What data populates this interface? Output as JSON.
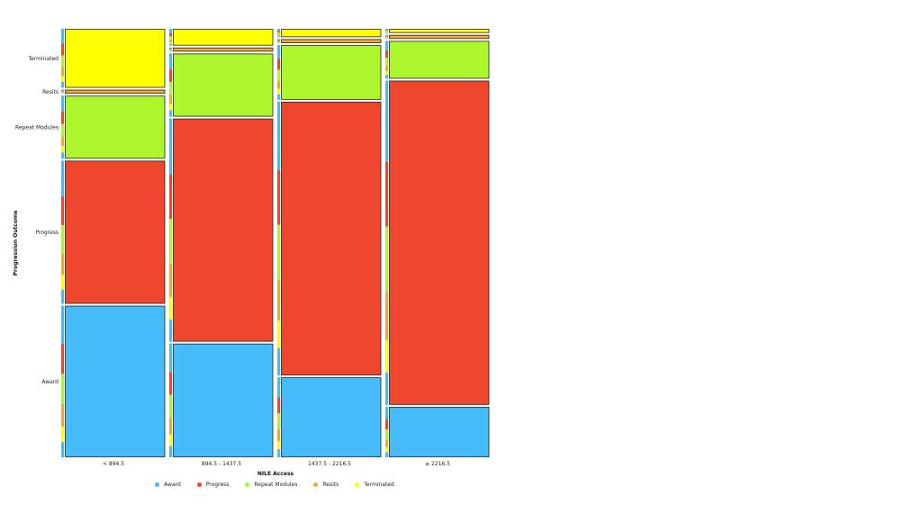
{
  "chart_data": {
    "type": "mosaic",
    "xlabel": "NILE Access",
    "ylabel": "Progression Outcome",
    "x_categories": [
      "< 894.5",
      "894.5 - 1437.5",
      "1437.5 - 2216.5",
      "≥ 2216.5"
    ],
    "x_widths": [
      0.25,
      0.25,
      0.25,
      0.25
    ],
    "y_categories": [
      "Award",
      "Progress",
      "Repeat Modules",
      "Resits",
      "Terminated"
    ],
    "y_tick_labels": [
      "Award",
      "Progress",
      "Repeat Modules",
      "Resits",
      "Terminated"
    ],
    "series": [
      {
        "name": "Award",
        "color": "#45BBF9",
        "values": [
          0.36,
          0.27,
          0.19,
          0.12
        ]
      },
      {
        "name": "Progress",
        "color": "#EF462E",
        "values": [
          0.34,
          0.53,
          0.65,
          0.77
        ]
      },
      {
        "name": "Repeat Modules",
        "color": "#ADF52C",
        "values": [
          0.15,
          0.15,
          0.13,
          0.09
        ]
      },
      {
        "name": "Resits",
        "color": "#F0A830",
        "values": [
          0.01,
          0.01,
          0.01,
          0.01
        ]
      },
      {
        "name": "Terminated",
        "color": "#FFFF00",
        "values": [
          0.14,
          0.04,
          0.02,
          0.01
        ]
      }
    ],
    "marginal_strip": [
      0.25,
      0.2,
      0.2,
      0.15,
      0.1,
      0.1
    ],
    "legend_position": "bottom",
    "grid": false
  },
  "legend": {
    "items": [
      {
        "label": "Award",
        "color": "#45BBF9"
      },
      {
        "label": "Progress",
        "color": "#EF462E"
      },
      {
        "label": "Repeat Modules",
        "color": "#ADF52C"
      },
      {
        "label": "Resits",
        "color": "#F0A830"
      },
      {
        "label": "Terminated",
        "color": "#FFFF00"
      }
    ]
  }
}
